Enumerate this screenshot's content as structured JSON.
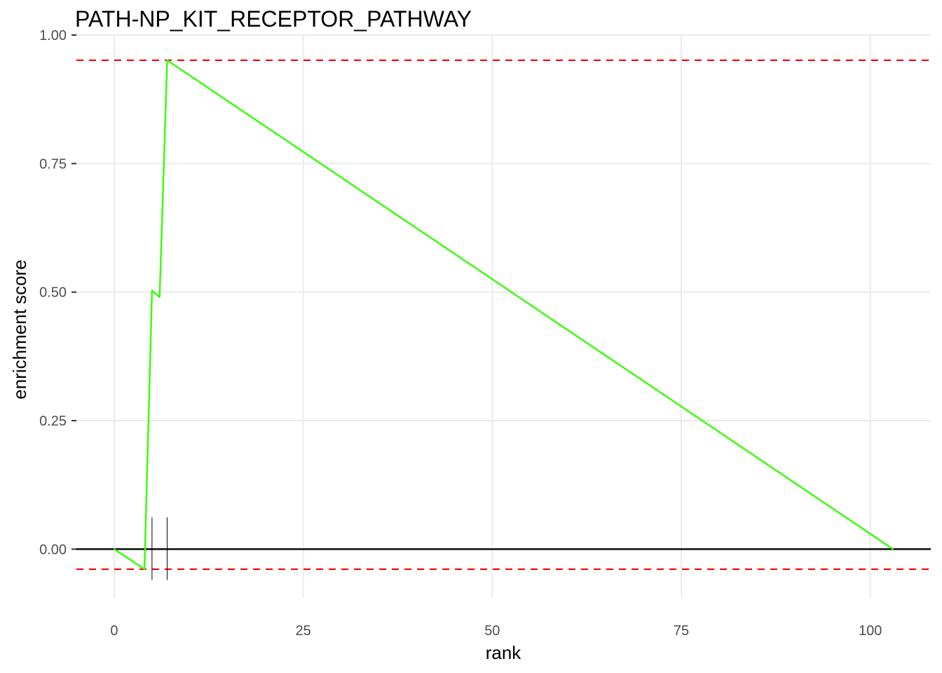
{
  "chart_data": {
    "type": "line",
    "title": "PATH-NP_KIT_RECEPTOR_PATHWAY",
    "xlabel": "rank",
    "ylabel": "enrichment score",
    "xlim": [
      -5,
      108
    ],
    "ylim": [
      -0.095,
      1.0
    ],
    "x_ticks": [
      0,
      25,
      50,
      75,
      100
    ],
    "x_tick_labels": [
      "0",
      "25",
      "50",
      "75",
      "100"
    ],
    "y_ticks": [
      0.0,
      0.25,
      0.5,
      0.75,
      1.0
    ],
    "y_tick_labels": [
      "0.00",
      "0.25",
      "0.50",
      "0.75",
      "1.00"
    ],
    "grid": true,
    "series": [
      {
        "color": "#33ff00",
        "x": [
          0,
          4,
          5,
          6,
          7,
          103
        ],
        "y": [
          0.0,
          -0.039,
          0.503,
          0.49,
          0.951,
          0.0
        ]
      }
    ],
    "hit_ranks": [
      5,
      7
    ],
    "hit_marker_y_range": [
      -0.06,
      0.062
    ],
    "zero_line": {
      "y": 0.0,
      "color": "#000000"
    },
    "reference_lines": [
      {
        "y": 0.951,
        "color": "#ff0000",
        "style": "dashed"
      },
      {
        "y": -0.039,
        "color": "#ff0000",
        "style": "dashed"
      }
    ],
    "colors": {
      "grid": "#ebebeb",
      "tick_text": "#4d4d4d"
    }
  }
}
